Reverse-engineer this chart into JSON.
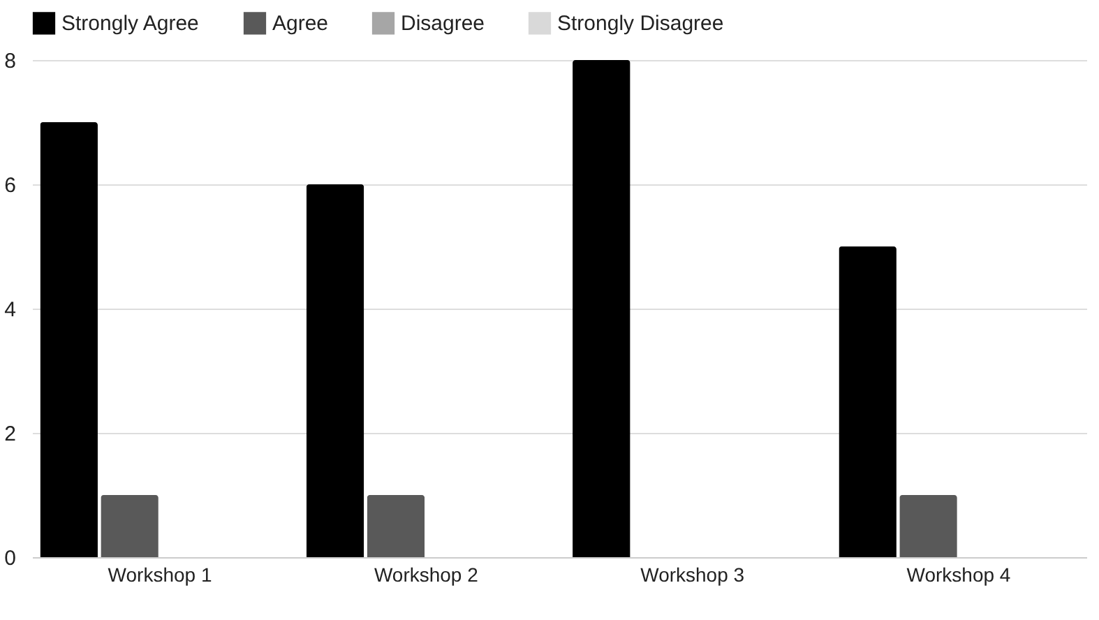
{
  "chart_data": {
    "type": "bar",
    "categories": [
      "Workshop 1",
      "Workshop 2",
      "Workshop 3",
      "Workshop 4"
    ],
    "series": [
      {
        "name": "Strongly Agree",
        "color": "#000000",
        "values": [
          7,
          6,
          8,
          5
        ]
      },
      {
        "name": "Agree",
        "color": "#595959",
        "values": [
          1,
          1,
          0,
          1
        ]
      },
      {
        "name": "Disagree",
        "color": "#a6a6a6",
        "values": [
          0,
          0,
          0,
          0
        ]
      },
      {
        "name": "Strongly Disagree",
        "color": "#d9d9d9",
        "values": [
          0,
          0,
          0,
          0
        ]
      }
    ],
    "ylim": [
      0,
      8
    ],
    "yticks": [
      0,
      2,
      4,
      6,
      8
    ],
    "grid": "y",
    "legend": "top"
  }
}
